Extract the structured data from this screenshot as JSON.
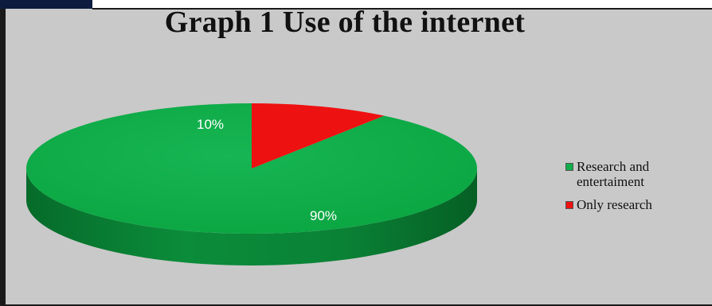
{
  "chart_data": {
    "type": "pie",
    "title": "Graph 1 Use of the internet",
    "slices": [
      {
        "label": "Research and\nentertaiment",
        "value": 90,
        "data_label": "90%",
        "color": "#0fae4a"
      },
      {
        "label": "Only research",
        "value": 10,
        "data_label": "10%",
        "color": "#ee1111"
      }
    ],
    "legend_position": "right",
    "style": "3d",
    "background_color": "#c9c9c9"
  }
}
